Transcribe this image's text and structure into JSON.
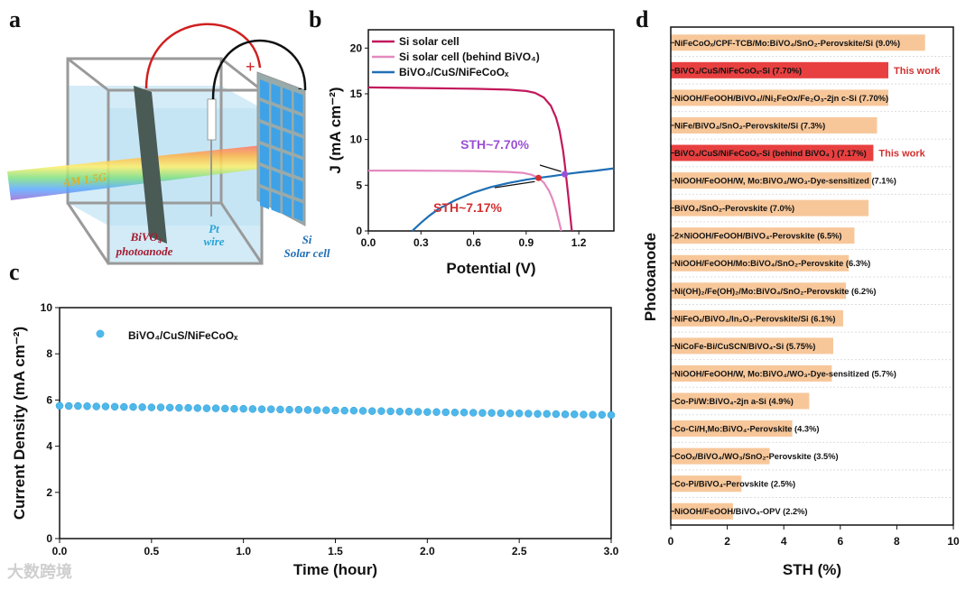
{
  "panel_labels": {
    "a": "a",
    "b": "b",
    "c": "c",
    "d": "d"
  },
  "watermark": "大数跨境",
  "diagram": {
    "light_label": "AM 1.5G",
    "photoanode_label_1": "BiVO₄",
    "photoanode_label_2": "photoanode",
    "pt_label_1": "Pt",
    "pt_label_2": "wire",
    "si_label_1": "Si",
    "si_label_2": "Solar cell",
    "plus_sign": "+",
    "minus_sign": "-",
    "colors": {
      "water": "#cfeaf6",
      "frame": "#9a9a9a",
      "red_wire": "#d02020",
      "cell": "#3fa2e6"
    }
  },
  "chart_data": [
    {
      "id": "b",
      "type": "line",
      "xlabel": "Potential (V)",
      "ylabel": "J (mA cm⁻²)",
      "xlim": [
        0,
        1.4
      ],
      "ylim": [
        0,
        22
      ],
      "xticks": [
        "0.0",
        "0.3",
        "0.6",
        "0.9",
        "1.2"
      ],
      "xtick_values": [
        0,
        0.3,
        0.6,
        0.9,
        1.2
      ],
      "yticks": [
        0,
        5,
        10,
        15,
        20
      ],
      "legend_position": "top-left",
      "series": [
        {
          "name": "Si solar cell",
          "color": "#c2185b",
          "x": [
            0,
            0.2,
            0.4,
            0.6,
            0.8,
            0.9,
            0.95,
            1.0,
            1.04,
            1.07,
            1.09,
            1.11,
            1.12,
            1.13,
            1.14,
            1.15,
            1.16
          ],
          "y": [
            15.7,
            15.65,
            15.6,
            15.55,
            15.45,
            15.3,
            15.1,
            14.6,
            13.7,
            12.4,
            11.0,
            8.8,
            7.3,
            5.6,
            3.8,
            1.9,
            0
          ]
        },
        {
          "name": "Si solar cell (behind BiVO₄)",
          "color": "#e58ac0",
          "x": [
            0,
            0.2,
            0.4,
            0.6,
            0.8,
            0.88,
            0.93,
            0.97,
            1.0,
            1.03,
            1.05,
            1.07,
            1.085,
            1.1
          ],
          "y": [
            6.6,
            6.6,
            6.58,
            6.55,
            6.45,
            6.35,
            6.15,
            5.8,
            5.3,
            4.4,
            3.5,
            2.3,
            1.2,
            0
          ]
        },
        {
          "name": "BiVO₄/CuS/NiFeCoOₓ",
          "color": "#1f6fb5",
          "x": [
            0.25,
            0.3,
            0.35,
            0.4,
            0.5,
            0.6,
            0.7,
            0.8,
            0.9,
            0.97,
            1.05,
            1.12,
            1.2,
            1.3,
            1.4
          ],
          "y": [
            0,
            0.9,
            1.7,
            2.4,
            3.4,
            4.2,
            4.8,
            5.25,
            5.6,
            5.8,
            6.0,
            6.2,
            6.4,
            6.6,
            6.85
          ]
        }
      ],
      "annotations": [
        {
          "text": "STH~7.70%",
          "x": 1.12,
          "y": 6.2,
          "color": "#9b4fd6"
        },
        {
          "text": "STH~7.17%",
          "x": 0.97,
          "y": 5.8,
          "color": "#d32f2f"
        }
      ]
    },
    {
      "id": "c",
      "type": "scatter",
      "xlabel": "Time (hour)",
      "ylabel": "Current Density (mA cm⁻²)",
      "xlim": [
        0,
        3.0
      ],
      "ylim": [
        0,
        10
      ],
      "xticks": [
        "0.0",
        "0.5",
        "1.0",
        "1.5",
        "2.0",
        "2.5",
        "3.0"
      ],
      "xtick_values": [
        0,
        0.5,
        1.0,
        1.5,
        2.0,
        2.5,
        3.0
      ],
      "yticks": [
        0,
        2,
        4,
        6,
        8,
        10
      ],
      "legend_position": "top-left",
      "series": [
        {
          "name": "BiVO₄/CuS/NiFeCoOₓ",
          "color": "#4fb8ea",
          "t_start": 0,
          "t_step": 0.05,
          "y": [
            5.75,
            5.74,
            5.74,
            5.73,
            5.72,
            5.72,
            5.71,
            5.7,
            5.7,
            5.69,
            5.68,
            5.68,
            5.67,
            5.66,
            5.66,
            5.65,
            5.64,
            5.64,
            5.63,
            5.62,
            5.62,
            5.61,
            5.6,
            5.6,
            5.59,
            5.58,
            5.58,
            5.57,
            5.56,
            5.56,
            5.55,
            5.54,
            5.54,
            5.53,
            5.52,
            5.52,
            5.51,
            5.5,
            5.5,
            5.49,
            5.48,
            5.48,
            5.47,
            5.46,
            5.46,
            5.45,
            5.44,
            5.44,
            5.43,
            5.42,
            5.42,
            5.41,
            5.4,
            5.4,
            5.39,
            5.38,
            5.38,
            5.37,
            5.36,
            5.36,
            5.35
          ]
        }
      ]
    },
    {
      "id": "d",
      "type": "bar",
      "orientation": "horizontal",
      "xlabel": "STH (%)",
      "ylabel": "Photoanode",
      "xlim": [
        0,
        10
      ],
      "xticks": [
        0,
        2,
        4,
        6,
        8,
        10
      ],
      "highlight_color": "#e84040",
      "default_color": "#f7c79a",
      "highlight_note": "This work",
      "bars": [
        {
          "label": "NiFeCoOₓ/CPF-TCB/Mo:BiVO₄/SnO₂-Perovskite/Si (9.0%)",
          "value": 9.0,
          "highlight": false
        },
        {
          "label": "BiVO₄/CuS/NiFeCoOₓ-Si (7.70%)",
          "value": 7.7,
          "highlight": true
        },
        {
          "label": "NiOOH/FeOOH/BiVO₄//Ni₂FeOx/Fe₂O₃-2jn c-Si (7.70%)",
          "value": 7.7,
          "highlight": false
        },
        {
          "label": "NiFe/BiVO₄/SnO₂-Perovskite/Si (7.3%)",
          "value": 7.3,
          "highlight": false
        },
        {
          "label": "BiVO₄/CuS/NiFeCoOₓ-Si (behind BiVO₄ ) (7.17%)",
          "value": 7.17,
          "highlight": true
        },
        {
          "label": "NiOOH/FeOOH/W, Mo:BiVO₄/WO₃-Dye-sensitized (7.1%)",
          "value": 7.1,
          "highlight": false
        },
        {
          "label": "BiVO₄/SnO₂-Perovskite (7.0%)",
          "value": 7.0,
          "highlight": false
        },
        {
          "label": "2×NiOOH/FeOOH/BiVO₄-Perovskite (6.5%)",
          "value": 6.5,
          "highlight": false
        },
        {
          "label": "NiOOH/FeOOH/Mo:BiVO₄/SnO₂-Perovskite (6.3%)",
          "value": 6.3,
          "highlight": false
        },
        {
          "label": "Ni(OH)₂/Fe(OH)₂/Mo:BiVO₄/SnO₂-Perovskite (6.2%)",
          "value": 6.2,
          "highlight": false
        },
        {
          "label": "NiFeOₓ/BiVO₄/In₂O₃-Perovskite/Si (6.1%)",
          "value": 6.1,
          "highlight": false
        },
        {
          "label": "NiCoFe-Bi/CuSCN/BiVO₄-Si (5.75%)",
          "value": 5.75,
          "highlight": false
        },
        {
          "label": "NiOOH/FeOOH/W, Mo:BiVO₄/WO₃-Dye-sensitized (5.7%)",
          "value": 5.7,
          "highlight": false
        },
        {
          "label": "Co-Pi/W:BiVO₄-2jn a-Si (4.9%)",
          "value": 4.9,
          "highlight": false
        },
        {
          "label": "Co-Ci/H,Mo:BiVO₄-Perovskite (4.3%)",
          "value": 4.3,
          "highlight": false
        },
        {
          "label": "CoOₓ/BiVO₄/WO₃/SnO₂-Perovskite (3.5%)",
          "value": 3.5,
          "highlight": false
        },
        {
          "label": "Co-Pi/BiVO₄-Perovskite (2.5%)",
          "value": 2.5,
          "highlight": false
        },
        {
          "label": "NiOOH/FeOOH/BiVO₄-OPV (2.2%)",
          "value": 2.2,
          "highlight": false
        }
      ]
    }
  ]
}
